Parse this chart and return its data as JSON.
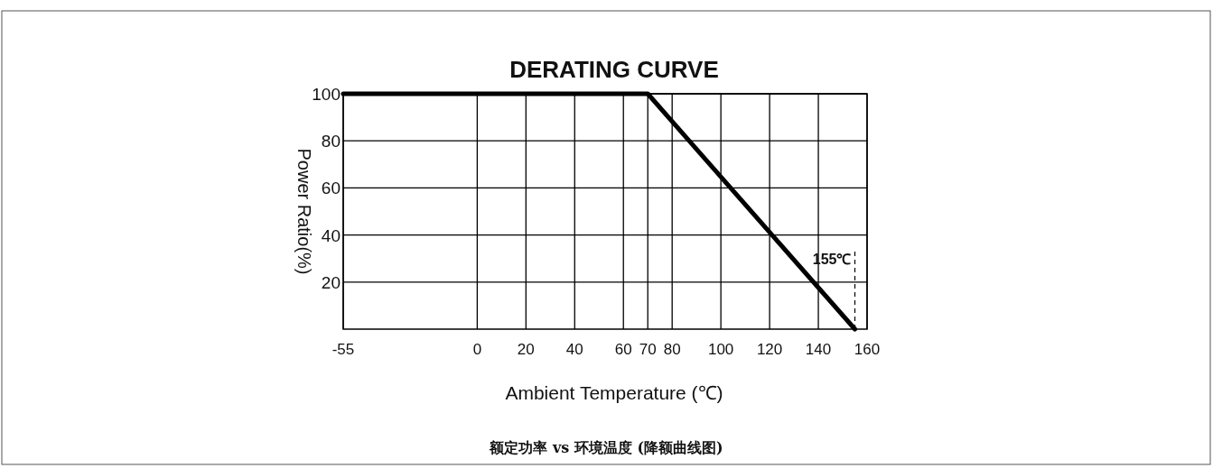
{
  "chart_data": {
    "type": "line",
    "title": "DERATING CURVE",
    "xlabel": "Ambient Temperature (℃)",
    "ylabel": "Power Ratio(%)",
    "x": [
      -55,
      70,
      155
    ],
    "values": [
      100,
      100,
      0
    ],
    "color": "#000000",
    "xlim": [
      -55,
      160
    ],
    "xticks": [
      -55,
      0,
      20,
      40,
      60,
      70,
      80,
      100,
      120,
      140,
      160
    ],
    "ylim": [
      0,
      100
    ],
    "yticks": [
      20,
      40,
      60,
      80,
      100
    ],
    "grid": true,
    "marker": "none",
    "line_style": "solid",
    "ref_lines": [
      {
        "axis": "x",
        "value": 155,
        "label": "155℃",
        "line_style": "dashed"
      }
    ],
    "annotations": [
      "额定功率 vs 环境温度 (降额曲线图)"
    ]
  }
}
